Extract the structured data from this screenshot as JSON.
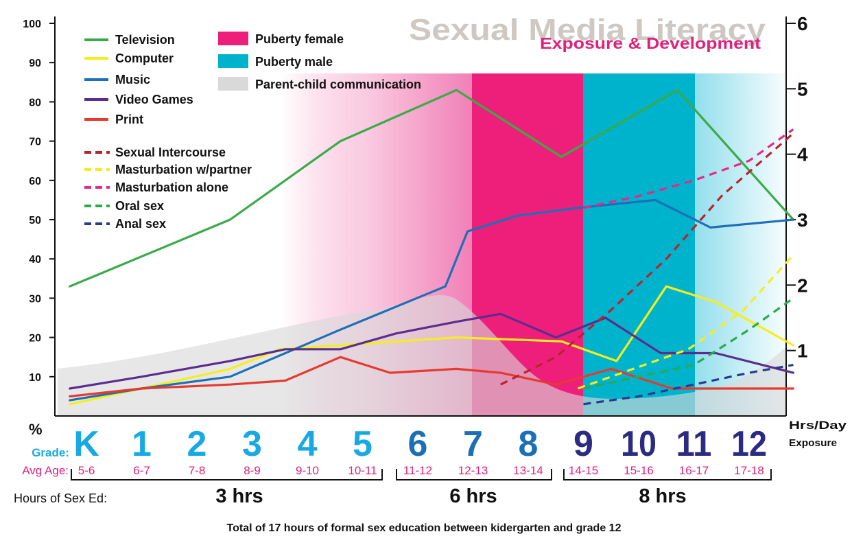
{
  "chart_data": {
    "type": "line",
    "title": "Sexual Media Literacy",
    "subtitle": "Exposure & Development",
    "ylabel_left": "%",
    "ylabel_right": [
      "Hrs/Day",
      "Exposure"
    ],
    "ylim_left": [
      0,
      100
    ],
    "ylim_right": [
      0,
      6
    ],
    "yticks_left": [
      "10",
      "20",
      "30",
      "40",
      "50",
      "60",
      "70",
      "80",
      "90",
      "100"
    ],
    "yticks_right": [
      "1",
      "2",
      "3",
      "4",
      "5",
      "6"
    ],
    "grade_label": "Grade:",
    "age_label": "Avg Age:",
    "grades": [
      {
        "grade": "K",
        "age": "5-6",
        "color": "#17a9e3"
      },
      {
        "grade": "1",
        "age": "6-7",
        "color": "#17a9e3"
      },
      {
        "grade": "2",
        "age": "7-8",
        "color": "#17a9e3"
      },
      {
        "grade": "3",
        "age": "8-9",
        "color": "#17a9e3"
      },
      {
        "grade": "4",
        "age": "9-10",
        "color": "#17a9e3"
      },
      {
        "grade": "5",
        "age": "10-11",
        "color": "#17a9e3"
      },
      {
        "grade": "6",
        "age": "11-12",
        "color": "#1b6fb6"
      },
      {
        "grade": "7",
        "age": "12-13",
        "color": "#1b6fb6"
      },
      {
        "grade": "8",
        "age": "13-14",
        "color": "#1b6fb6"
      },
      {
        "grade": "9",
        "age": "14-15",
        "color": "#2b2b84"
      },
      {
        "grade": "10",
        "age": "15-16",
        "color": "#2b2b84"
      },
      {
        "grade": "11",
        "age": "16-17",
        "color": "#2b2b84"
      },
      {
        "grade": "12",
        "age": "17-18",
        "color": "#2b2b84"
      }
    ],
    "series": [
      {
        "name": "Television",
        "color": "#3aaa49",
        "dash": false,
        "x": [
          -0.3,
          2.6,
          4.6,
          6.7,
          8.6,
          10.7,
          12.8
        ],
        "values": [
          33,
          50,
          70,
          83,
          66,
          83,
          50
        ]
      },
      {
        "name": "Computer",
        "color": "#f5ee1e",
        "dash": false,
        "x": [
          -0.3,
          1.0,
          2.6,
          3.5,
          4.6,
          6.7,
          8.6,
          9.6,
          10.5,
          11.4,
          12.8
        ],
        "values": [
          3,
          7,
          12,
          17,
          18,
          20,
          19,
          14,
          33,
          29,
          18
        ]
      },
      {
        "name": "Music",
        "color": "#1d6fb8",
        "dash": false,
        "x": [
          -0.3,
          1.0,
          2.6,
          4.6,
          6.5,
          6.9,
          7.8,
          8.9,
          10.3,
          11.3,
          12.8
        ],
        "values": [
          4,
          7,
          10,
          22,
          33,
          47,
          51,
          53,
          55,
          48,
          50
        ]
      },
      {
        "name": "Video Games",
        "color": "#5b2d8e",
        "dash": false,
        "x": [
          -0.3,
          1.0,
          2.6,
          3.6,
          4.6,
          5.6,
          6.7,
          7.5,
          8.5,
          9.4,
          10.4,
          11.4,
          12.8
        ],
        "values": [
          7,
          10,
          14,
          17,
          17,
          21,
          24,
          26,
          20,
          25,
          16,
          16,
          11
        ]
      },
      {
        "name": "Print",
        "color": "#e53a2e",
        "dash": false,
        "x": [
          -0.3,
          1.0,
          2.6,
          3.6,
          4.6,
          5.5,
          6.7,
          7.5,
          8.5,
          9.5,
          10.6,
          11.5,
          12.8
        ],
        "values": [
          5,
          7,
          8,
          9,
          15,
          11,
          12,
          11,
          8,
          12,
          7,
          7,
          7
        ]
      },
      {
        "name": "Sexual Intercourse",
        "color": "#b8232f",
        "dash": true,
        "x": [
          7.5,
          8.5,
          9.5,
          10.5,
          11.5,
          12.8
        ],
        "values": [
          8,
          15,
          27,
          40,
          56,
          72
        ]
      },
      {
        "name": "Masturbation w/partner",
        "color": "#f5ee1e",
        "dash": true,
        "x": [
          8.9,
          9.9,
          10.9,
          11.9,
          12.8
        ],
        "values": [
          7,
          12,
          17,
          27,
          41
        ]
      },
      {
        "name": "Masturbation alone",
        "color": "#e5288a",
        "dash": true,
        "x": [
          9.0,
          10.0,
          11.0,
          12.0,
          12.8
        ],
        "values": [
          53,
          56,
          60,
          65,
          73
        ]
      },
      {
        "name": "Oral sex",
        "color": "#2aaa4a",
        "dash": true,
        "x": [
          9.0,
          10.0,
          11.0,
          12.0,
          12.8
        ],
        "values": [
          7,
          10,
          13,
          22,
          30
        ]
      },
      {
        "name": "Anal sex",
        "color": "#2b3a8c",
        "dash": true,
        "x": [
          9.0,
          10.0,
          11.0,
          12.0,
          12.8
        ],
        "values": [
          3,
          5,
          8,
          11,
          13
        ]
      }
    ],
    "bands": [
      {
        "name": "Puberty female",
        "color": "#ee1f7a"
      },
      {
        "name": "Puberty male",
        "color": "#00b3cc"
      },
      {
        "name": "Parent-child communication",
        "color": "#d9d9d9"
      }
    ],
    "sex_ed": {
      "label": "Hours of Sex Ed:",
      "groups": [
        {
          "label": "3 hrs",
          "from": "K",
          "to": "5"
        },
        {
          "label": "6 hrs",
          "from": "6",
          "to": "8"
        },
        {
          "label": "8 hrs",
          "from": "9",
          "to": "12"
        }
      ],
      "footnote": "Total of 17 hours of formal sex education between kidergarten and grade 12"
    }
  }
}
